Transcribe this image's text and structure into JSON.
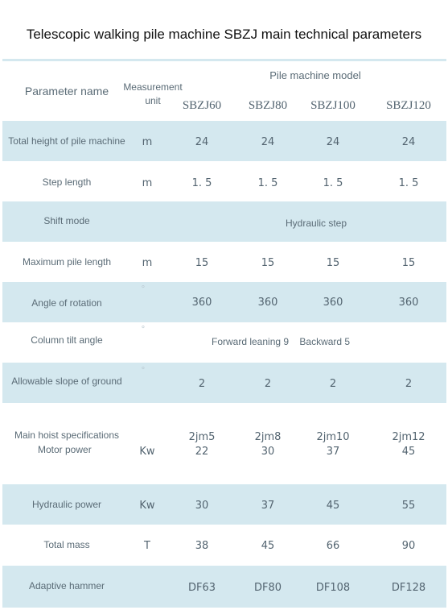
{
  "title": "Telescopic walking pile machine SBZJ main technical parameters",
  "header": {
    "param_name": "Parameter name",
    "unit_line1": "Measurement",
    "unit_line2": "unit",
    "group": "Pile machine model",
    "models": [
      "SBZJ60",
      "SBZJ80",
      "SBZJ100",
      "SBZJ120"
    ]
  },
  "rows": [
    {
      "name": "Total height of pile machine",
      "unit": "m",
      "values": [
        "24",
        "24",
        "24",
        "24"
      ]
    },
    {
      "name": "Step length",
      "unit": "m",
      "values": [
        "1. 5",
        "1. 5",
        "1. 5",
        "1. 5"
      ]
    },
    {
      "name": "Shift mode",
      "unit": "",
      "span": "Hydraulic step"
    },
    {
      "name": "Maximum pile length",
      "unit": "m",
      "values": [
        "15",
        "15",
        "15",
        "15"
      ]
    },
    {
      "name": "Angle of rotation",
      "unit": "°",
      "values": [
        "360",
        "360",
        "360",
        "360"
      ]
    },
    {
      "name": "Column tilt angle",
      "unit": "°",
      "span": "Forward leaning 9    Backward 5"
    },
    {
      "name": "Allowable slope of ground",
      "unit": "°",
      "values": [
        "2",
        "2",
        "2",
        "2"
      ]
    },
    {
      "name_line1": "Main hoist specifications",
      "name_line2": "Motor power",
      "unit": "Kw",
      "values_line1": [
        "2jm5",
        "2jm8",
        "2jm10",
        "2jm12"
      ],
      "values_line2": [
        "22",
        "30",
        "37",
        "45"
      ]
    },
    {
      "name": "Hydraulic power",
      "unit": "Kw",
      "values": [
        "30",
        "37",
        "45",
        "55"
      ]
    },
    {
      "name": "Total mass",
      "unit": "T",
      "values": [
        "38",
        "45",
        "66",
        "90"
      ]
    },
    {
      "name": "Adaptive hammer",
      "unit": "",
      "values": [
        "DF63",
        "DF80",
        "DF108",
        "DF128"
      ]
    }
  ],
  "colors": {
    "band": "#d4e8ef",
    "text": "#5a6b76"
  }
}
